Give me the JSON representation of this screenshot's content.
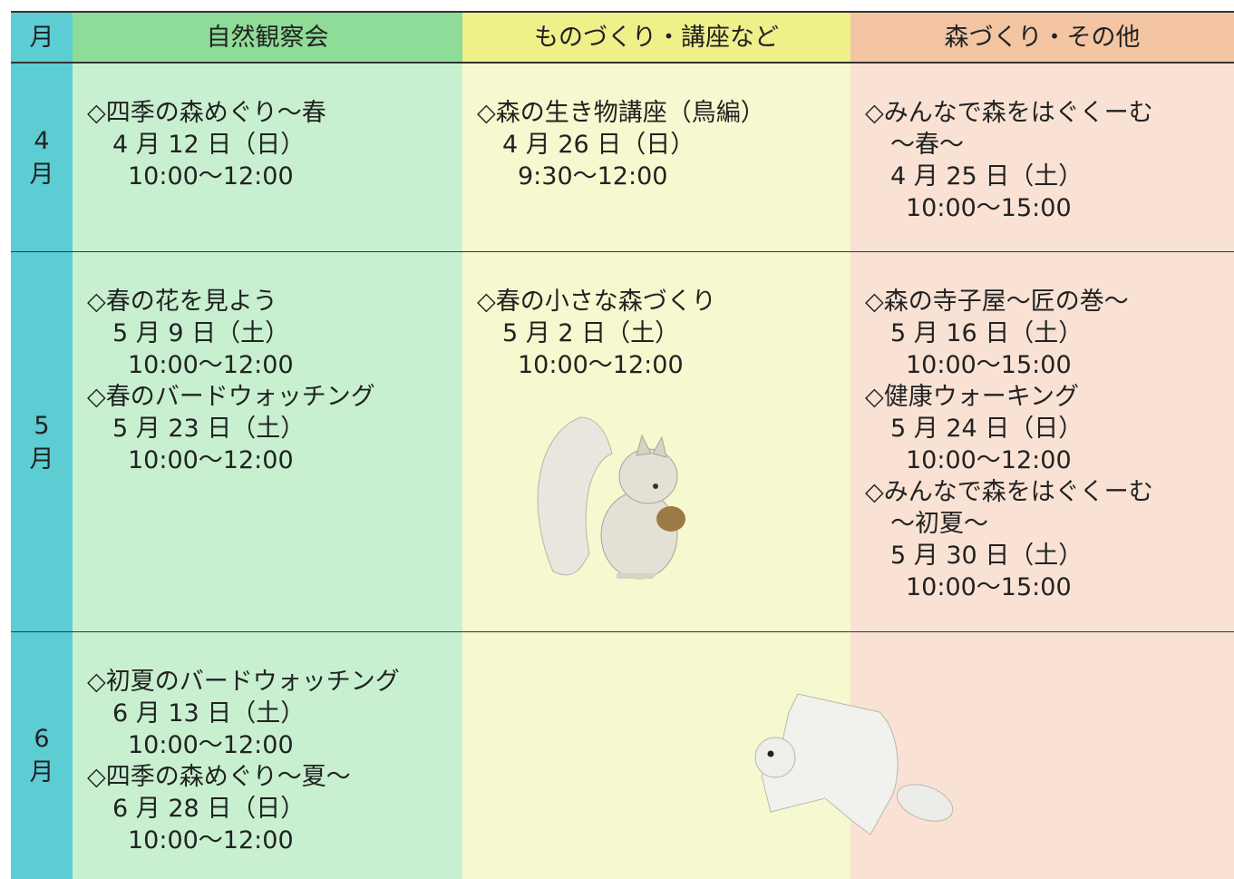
{
  "header": [
    "月",
    "自然観察会",
    "ものづくり・講座など",
    "森づくり・その他"
  ],
  "rows": [
    {
      "month": [
        "4",
        "月"
      ],
      "cells": [
        [
          {
            "title": [
              "◇四季の森めぐり～春"
            ],
            "date": "4 月 12 日（日）",
            "time": "10:00～12:00"
          }
        ],
        [
          {
            "title": [
              "◇森の生き物講座（鳥編）"
            ],
            "date": "4 月 26 日（日）",
            "time": "9:30～12:00"
          }
        ],
        [
          {
            "title": [
              "◇みんなで森をはぐくーむ",
              "～春～"
            ],
            "date": "4 月 25 日（土）",
            "time": "10:00～15:00"
          }
        ]
      ]
    },
    {
      "month": [
        "5",
        "月"
      ],
      "cells": [
        [
          {
            "title": [
              "◇春の花を見よう"
            ],
            "date": "5 月 9 日（土）",
            "time": "10:00～12:00"
          },
          {
            "title": [
              "◇春のバードウォッチング"
            ],
            "date": "5 月 23 日（土）",
            "time": "10:00～12:00"
          }
        ],
        [
          {
            "title": [
              "◇春の小さな森づくり"
            ],
            "date": "5 月 2 日（土）",
            "time": "10:00～12:00"
          }
        ],
        [
          {
            "title": [
              "◇森の寺子屋～匠の巻～"
            ],
            "date": "5 月 16 日（土）",
            "time": "10:00～15:00"
          },
          {
            "title": [
              "◇健康ウォーキング"
            ],
            "date": "5 月 24 日（日）",
            "time": "10:00～12:00"
          },
          {
            "title": [
              "◇みんなで森をはぐくーむ",
              "～初夏～"
            ],
            "date": "5 月 30 日（土）",
            "time": "10:00～15:00"
          }
        ]
      ]
    },
    {
      "month": [
        "6",
        "月"
      ],
      "cells": [
        [
          {
            "title": [
              "◇初夏のバードウォッチング"
            ],
            "date": "6 月 13 日（土）",
            "time": "10:00～12:00"
          },
          {
            "title": [
              "◇四季の森めぐり～夏～"
            ],
            "date": "6 月 28 日（日）",
            "time": "10:00～12:00"
          }
        ],
        [],
        []
      ]
    }
  ]
}
